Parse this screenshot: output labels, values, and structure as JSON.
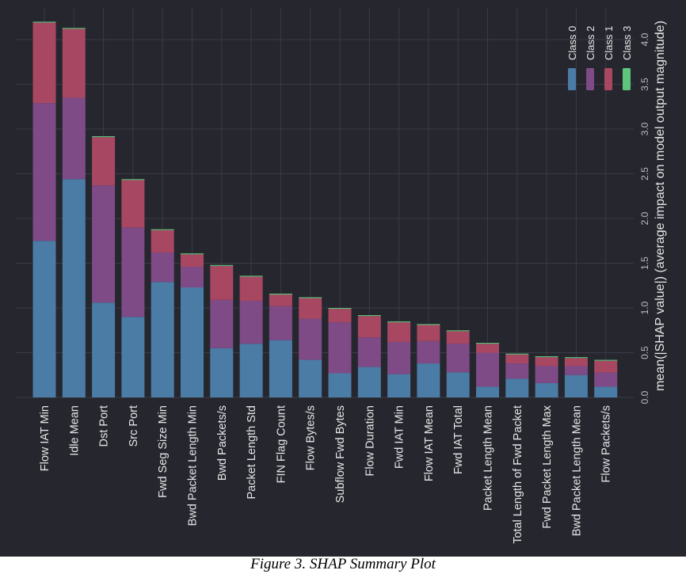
{
  "caption": "Figure 3. SHAP Summary Plot",
  "chart_data": {
    "type": "bar",
    "stacked": true,
    "orientation": "vertical-rotated",
    "ylabel": "mean(|SHAP value|) (average impact on model output magnitude)",
    "ylim": [
      0,
      4.3
    ],
    "yticks": [
      "0.0",
      "0.5",
      "1.0",
      "1.5",
      "2.0",
      "2.5",
      "3.0",
      "3.5",
      "4.0"
    ],
    "grid": true,
    "legend_position": "top-right",
    "categories": [
      "Flow IAT Min",
      "Idle Mean",
      "Dst Port",
      "Src Port",
      "Fwd Seg Size Min",
      "Bwd Packet Length Min",
      "Bwd Packets/s",
      "Packet Length Std",
      "FIN Flag Count",
      "Flow Bytes/s",
      "Subflow Fwd Bytes",
      "Flow Duration",
      "Fwd IAT Min",
      "Flow IAT Mean",
      "Fwd IAT Total",
      "Packet Length Mean",
      "Total Length of Fwd Packet",
      "Fwd Packet Length Max",
      "Bwd Packet Length Mean",
      "Flow Packets/s"
    ],
    "series": [
      {
        "name": "Class 0",
        "color": "#4a7ca6",
        "values": [
          1.75,
          2.44,
          1.06,
          0.9,
          1.29,
          1.23,
          0.55,
          0.6,
          0.64,
          0.42,
          0.27,
          0.34,
          0.26,
          0.38,
          0.28,
          0.12,
          0.21,
          0.16,
          0.25,
          0.12
        ]
      },
      {
        "name": "Class 2",
        "color": "#7e4b86",
        "values": [
          1.54,
          0.91,
          1.31,
          1.0,
          0.33,
          0.23,
          0.54,
          0.48,
          0.38,
          0.46,
          0.57,
          0.33,
          0.36,
          0.25,
          0.32,
          0.38,
          0.17,
          0.19,
          0.1,
          0.16
        ]
      },
      {
        "name": "Class 1",
        "color": "#a84762",
        "values": [
          0.9,
          0.77,
          0.54,
          0.53,
          0.25,
          0.14,
          0.38,
          0.27,
          0.13,
          0.23,
          0.15,
          0.24,
          0.22,
          0.18,
          0.14,
          0.1,
          0.1,
          0.1,
          0.09,
          0.13
        ]
      },
      {
        "name": "Class 3",
        "color": "#5fc57d",
        "values": [
          0.01,
          0.01,
          0.01,
          0.01,
          0.01,
          0.01,
          0.01,
          0.01,
          0.01,
          0.01,
          0.01,
          0.01,
          0.01,
          0.01,
          0.01,
          0.01,
          0.01,
          0.01,
          0.01,
          0.01
        ]
      }
    ],
    "legend_order": [
      "Class 0",
      "Class 2",
      "Class 1",
      "Class 3"
    ],
    "colors": {
      "background": "#26262f",
      "grid": "#3a3a44",
      "text": "#e6e6e6",
      "axis_text": "#bdbdbd"
    }
  }
}
